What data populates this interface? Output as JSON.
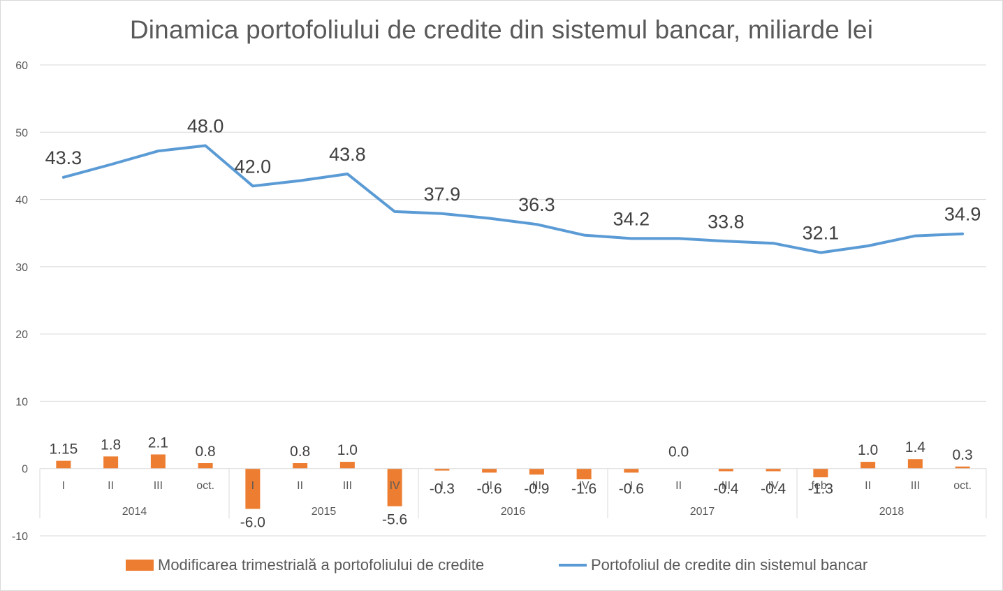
{
  "chart_data": {
    "type": "bar+line",
    "title": "Dinamica portofoliului de credite din sistemul bancar, miliarde lei",
    "ylim": [
      -10,
      60
    ],
    "yticks": [
      -10,
      0,
      10,
      20,
      30,
      40,
      50,
      60
    ],
    "grid": true,
    "legend_position": "bottom",
    "categories": [
      "I",
      "II",
      "III",
      "oct.",
      "I",
      "II",
      "III",
      "IV",
      "I",
      "II",
      "III",
      "IV",
      "I",
      "II",
      "III",
      "IV",
      "feb.",
      "II",
      "III",
      "oct."
    ],
    "groups": [
      {
        "label": "2014",
        "count": 4
      },
      {
        "label": "2015",
        "count": 4
      },
      {
        "label": "2016",
        "count": 4
      },
      {
        "label": "2017",
        "count": 4
      },
      {
        "label": "2018",
        "count": 4
      }
    ],
    "series": [
      {
        "name": "Modificarea trimestrială a portofoliului de credite",
        "type": "bar",
        "color": "#ED7D31",
        "values": [
          1.15,
          1.8,
          2.1,
          0.8,
          -6.0,
          0.8,
          1.0,
          -5.6,
          -0.3,
          -0.6,
          -0.9,
          -1.6,
          -0.6,
          0.0,
          -0.4,
          -0.4,
          -1.3,
          1.0,
          1.4,
          0.3
        ],
        "labels": [
          "1.15",
          "1.8",
          "2.1",
          "0.8",
          "-6.0",
          "0.8",
          "1.0",
          "-5.6",
          "-0.3",
          "-0.6",
          "-0.9",
          "-1.6",
          "-0.6",
          "0.0",
          "-0.4",
          "-0.4",
          "-1.3",
          "1.0",
          "1.4",
          "0.3"
        ]
      },
      {
        "name": "Portofoliul de credite din sistemul bancar",
        "type": "line",
        "color": "#5B9BD5",
        "values": [
          43.3,
          45.2,
          47.2,
          48.0,
          42.0,
          42.8,
          43.8,
          38.2,
          37.9,
          37.2,
          36.3,
          34.7,
          34.2,
          34.2,
          33.8,
          33.5,
          32.1,
          33.1,
          34.6,
          34.9
        ],
        "labels": [
          "43.3",
          "",
          "",
          "48.0",
          "42.0",
          "",
          "43.8",
          "",
          "37.9",
          "",
          "36.3",
          "",
          "34.2",
          "",
          "33.8",
          "",
          "32.1",
          "",
          "",
          "34.9"
        ]
      }
    ]
  }
}
